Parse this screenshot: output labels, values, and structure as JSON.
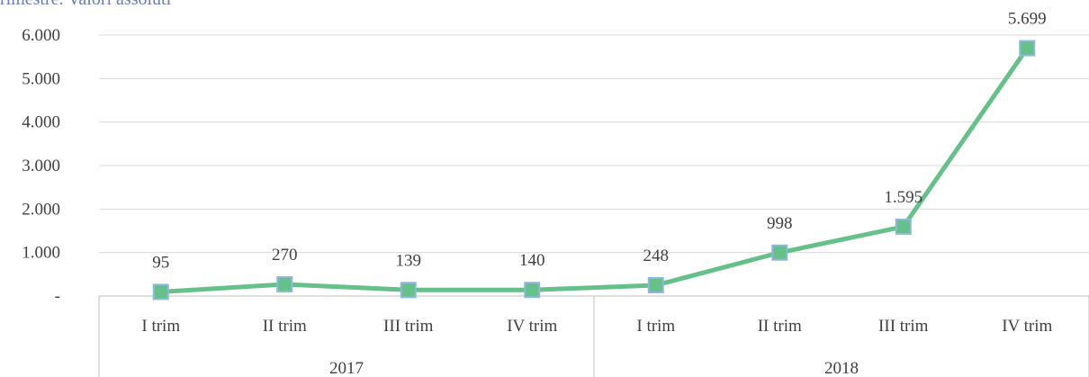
{
  "chart_data": {
    "type": "line",
    "title": "rimestre. Valori assoluti",
    "groups": [
      {
        "label": "2017",
        "categories": [
          "I trim",
          "II trim",
          "III trim",
          "IV trim"
        ]
      },
      {
        "label": "2018",
        "categories": [
          "I trim",
          "II trim",
          "III trim",
          "IV trim"
        ]
      }
    ],
    "categories": [
      "I trim",
      "II trim",
      "III trim",
      "IV trim",
      "I trim",
      "II trim",
      "III trim",
      "IV trim"
    ],
    "values": [
      95,
      270,
      139,
      140,
      248,
      998,
      1595,
      5699
    ],
    "data_labels": [
      "95",
      "270",
      "139",
      "140",
      "248",
      "998",
      "1.595",
      "5.699"
    ],
    "ylim": [
      0,
      6000
    ],
    "yticks": [
      0,
      1000,
      2000,
      3000,
      4000,
      5000,
      6000
    ],
    "ytick_labels": [
      "-",
      "1.000",
      "2.000",
      "3.000",
      "4.000",
      "5.000",
      "6.000"
    ],
    "grid": true,
    "colors": {
      "line": "#66c08a",
      "marker": "#66c08a",
      "marker_edge": "#8fb8dc",
      "grid": "#d9d9d9",
      "axis": "#bfbfbf",
      "title": "#6c7bb8"
    }
  }
}
